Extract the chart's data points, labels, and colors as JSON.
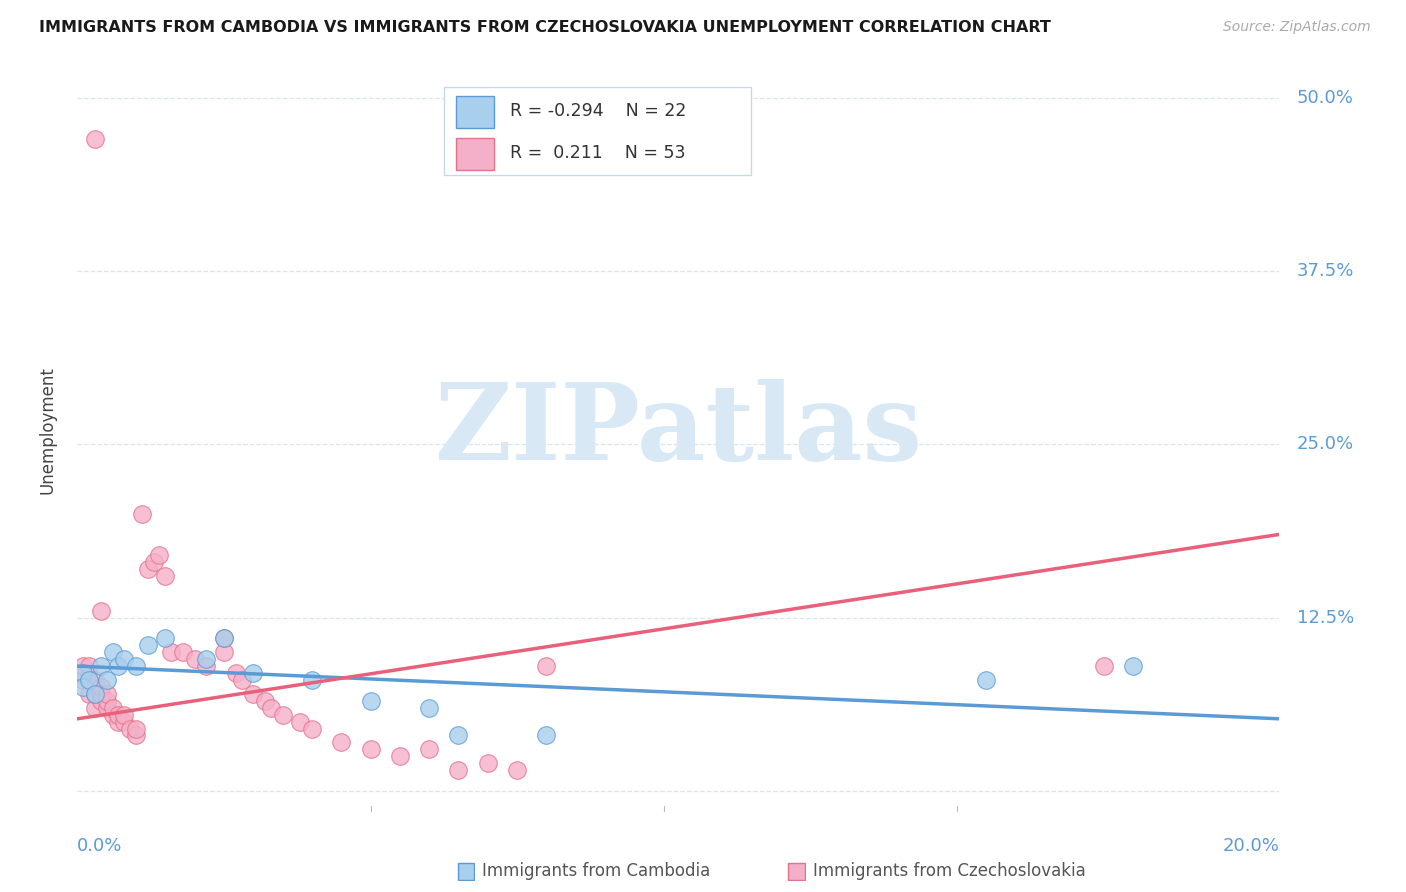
{
  "title": "IMMIGRANTS FROM CAMBODIA VS IMMIGRANTS FROM CZECHOSLOVAKIA UNEMPLOYMENT CORRELATION CHART",
  "source": "Source: ZipAtlas.com",
  "ylabel": "Unemployment",
  "xlim": [
    0.0,
    0.205
  ],
  "ylim": [
    -0.015,
    0.535
  ],
  "yticks": [
    0.0,
    0.125,
    0.25,
    0.375,
    0.5
  ],
  "ytick_labels": [
    "",
    "12.5%",
    "25.0%",
    "37.5%",
    "50.0%"
  ],
  "color_cambodia_fill": "#A8CFED",
  "color_cambodia_edge": "#5B9BD5",
  "color_czechoslovakia_fill": "#F4B0C8",
  "color_czechoslovakia_edge": "#E8708A",
  "color_line_cambodia": "#5B9BD5",
  "color_line_czechoslovakia": "#E8607A",
  "color_ytick": "#5B9BD5",
  "color_xtick": "#5B9BD5",
  "color_grid": "#D8E6F0",
  "background": "#FFFFFF",
  "watermark": "ZIPatlas",
  "watermark_color": "#D8E8F5",
  "cambodia_x": [
    0.001,
    0.001,
    0.002,
    0.003,
    0.004,
    0.005,
    0.006,
    0.007,
    0.008,
    0.01,
    0.012,
    0.015,
    0.022,
    0.025,
    0.03,
    0.04,
    0.05,
    0.06,
    0.065,
    0.08,
    0.155,
    0.18
  ],
  "cambodia_y": [
    0.085,
    0.075,
    0.08,
    0.07,
    0.09,
    0.08,
    0.1,
    0.09,
    0.095,
    0.09,
    0.105,
    0.11,
    0.095,
    0.11,
    0.085,
    0.08,
    0.065,
    0.06,
    0.04,
    0.04,
    0.08,
    0.09
  ],
  "czechoslovakia_x": [
    0.001,
    0.001,
    0.002,
    0.002,
    0.002,
    0.003,
    0.003,
    0.003,
    0.004,
    0.004,
    0.004,
    0.005,
    0.005,
    0.005,
    0.006,
    0.006,
    0.007,
    0.007,
    0.008,
    0.008,
    0.009,
    0.01,
    0.01,
    0.011,
    0.012,
    0.013,
    0.014,
    0.015,
    0.016,
    0.018,
    0.02,
    0.022,
    0.025,
    0.025,
    0.027,
    0.028,
    0.03,
    0.032,
    0.033,
    0.035,
    0.038,
    0.04,
    0.045,
    0.05,
    0.055,
    0.06,
    0.065,
    0.07,
    0.075,
    0.08,
    0.175,
    0.003,
    0.004
  ],
  "czechoslovakia_y": [
    0.08,
    0.09,
    0.07,
    0.08,
    0.09,
    0.06,
    0.07,
    0.08,
    0.065,
    0.07,
    0.075,
    0.06,
    0.065,
    0.07,
    0.055,
    0.06,
    0.05,
    0.055,
    0.05,
    0.055,
    0.045,
    0.04,
    0.045,
    0.2,
    0.16,
    0.165,
    0.17,
    0.155,
    0.1,
    0.1,
    0.095,
    0.09,
    0.1,
    0.11,
    0.085,
    0.08,
    0.07,
    0.065,
    0.06,
    0.055,
    0.05,
    0.045,
    0.035,
    0.03,
    0.025,
    0.03,
    0.015,
    0.02,
    0.015,
    0.09,
    0.09,
    0.47,
    0.13
  ],
  "cam_line_x0": 0.0,
  "cam_line_x1": 0.205,
  "cam_line_y0": 0.09,
  "cam_line_y1": 0.052,
  "cze_line_x0": 0.0,
  "cze_line_x1": 0.205,
  "cze_line_y0": 0.052,
  "cze_line_y1": 0.185
}
